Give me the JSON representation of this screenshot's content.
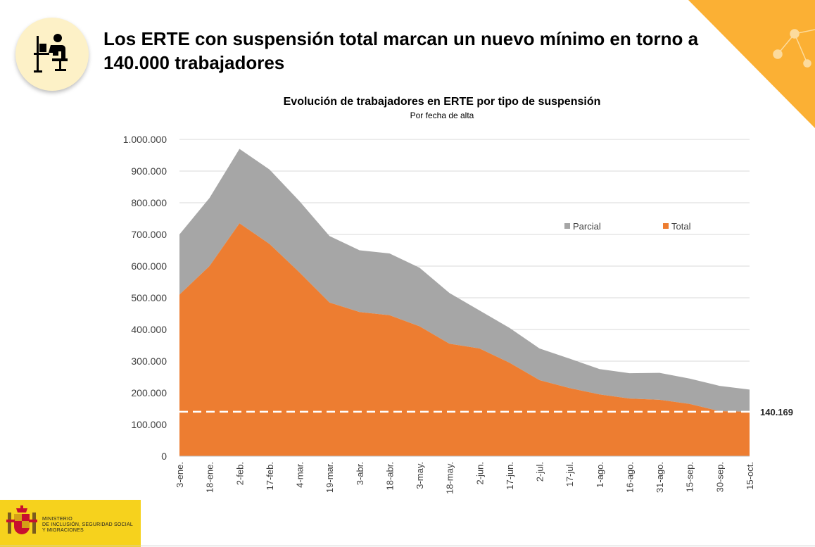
{
  "header": {
    "title": "Los ERTE con suspensión total marcan un nuevo mínimo en torno a 140.000 trabajadores"
  },
  "footer": {
    "ministry_lines": [
      "MINISTERIO",
      "DE INCLUSIÓN, SEGURIDAD SOCIAL",
      "Y MIGRACIONES"
    ]
  },
  "icons": {
    "header_icon": "person-at-computer-icon",
    "ministry_logo": "spain-coat-of-arms-icon",
    "corner": "network-nodes-icon"
  },
  "colors": {
    "total": "#ED7D31",
    "parcial": "#A6A6A6",
    "corner": "#FBB034",
    "ministry_bg": "#F6D21D",
    "reference_line": "#FFFFFF"
  },
  "chart_data": {
    "type": "area",
    "stacked": true,
    "title": "Evolución de trabajadores en ERTE por tipo de suspensión",
    "subtitle": "Por fecha de alta",
    "xlabel": "",
    "ylabel": "",
    "ylim": [
      0,
      1000000
    ],
    "grid": true,
    "legend_position": "top-right",
    "yticks": [
      0,
      100000,
      200000,
      300000,
      400000,
      500000,
      600000,
      700000,
      800000,
      900000,
      1000000
    ],
    "ytick_labels": [
      "0",
      "100.000",
      "200.000",
      "300.000",
      "400.000",
      "500.000",
      "600.000",
      "700.000",
      "800.000",
      "900.000",
      "1.000.000"
    ],
    "categories": [
      "3-ene.",
      "18-ene.",
      "2-feb.",
      "17-feb.",
      "4-mar.",
      "19-mar.",
      "3-abr.",
      "18-abr.",
      "3-may.",
      "18-may.",
      "2-jun.",
      "17-jun.",
      "2-jul.",
      "17-jul.",
      "1-ago.",
      "16-ago.",
      "31-ago.",
      "15-sep.",
      "30-sep.",
      "15-oct."
    ],
    "series": [
      {
        "name": "Total",
        "values": [
          510000,
          600000,
          735000,
          670000,
          580000,
          485000,
          455000,
          445000,
          410000,
          355000,
          340000,
          295000,
          240000,
          215000,
          195000,
          182000,
          178000,
          165000,
          142000,
          140169
        ]
      },
      {
        "name": "Parcial",
        "values": [
          190000,
          215000,
          235000,
          235000,
          225000,
          210000,
          195000,
          195000,
          185000,
          160000,
          120000,
          110000,
          100000,
          93000,
          80000,
          80000,
          85000,
          80000,
          80000,
          70000
        ]
      }
    ],
    "reference_line": {
      "value": 140169,
      "label": "140.169",
      "style": "dashed"
    }
  }
}
